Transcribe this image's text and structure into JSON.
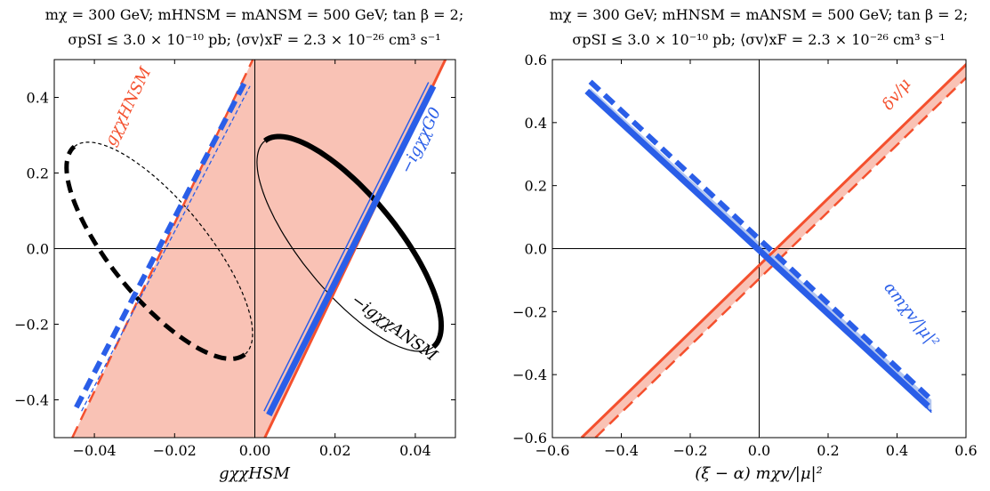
{
  "colors": {
    "red": "#f4502e",
    "red_fill": "#f9c2b5",
    "blue": "#2a5ee8",
    "blue_fill": "#b4c7f0",
    "black": "#000000"
  },
  "chart_data": [
    {
      "type": "line",
      "title_line1": "mχ = 300 GeV; mHNSM = mANSM = 500 GeV; tan β = 2;",
      "title_line2": "σpSI ≤ 3.0 × 10⁻¹⁰ pb; ⟨σv⟩xF = 2.3 × 10⁻²⁶ cm³ s⁻¹",
      "xlabel": "gχχHSM",
      "ylabel": "",
      "xlim": [
        -0.05,
        0.05
      ],
      "ylim": [
        -0.5,
        0.5
      ],
      "xticks": [
        -0.04,
        -0.02,
        0.0,
        0.02,
        0.04
      ],
      "xtick_labels": [
        "−0.04",
        "−0.02",
        "0.00",
        "0.02",
        "0.04"
      ],
      "yticks": [
        -0.4,
        -0.2,
        0.0,
        0.2,
        0.4
      ],
      "ytick_labels": [
        "−0.4",
        "−0.2",
        "0.0",
        "0.2",
        "0.4"
      ],
      "grid": false,
      "zero_lines": true,
      "band": {
        "color_key": "red",
        "left_edge": [
          [
            -0.0455,
            -0.5
          ],
          [
            -0.0005,
            0.5
          ]
        ],
        "right_edge": [
          [
            0.0025,
            -0.5
          ],
          [
            0.0475,
            0.5
          ]
        ]
      },
      "segments": [
        {
          "color_key": "red",
          "style": "dashed",
          "width": 2.5,
          "points": [
            [
              -0.0455,
              -0.5
            ],
            [
              -0.0005,
              0.5
            ]
          ]
        },
        {
          "color_key": "red",
          "style": "solid",
          "width": 3,
          "points": [
            [
              0.0025,
              -0.5
            ],
            [
              0.0475,
              0.5
            ]
          ]
        },
        {
          "color_key": "blue",
          "style": "dashed",
          "width": 6,
          "points": [
            [
              -0.0445,
              -0.42
            ],
            [
              -0.0025,
              0.44
            ]
          ]
        },
        {
          "color_key": "blue",
          "style": "dashed",
          "width": 1.3,
          "points": [
            [
              -0.0445,
              -0.42
            ],
            [
              -0.0025,
              0.44
            ]
          ],
          "offset": [
            0.0013,
            -0.01
          ]
        },
        {
          "color_key": "blue",
          "style": "solid",
          "width": 7,
          "points": [
            [
              0.0035,
              -0.44
            ],
            [
              0.0445,
              0.43
            ]
          ]
        },
        {
          "color_key": "blue",
          "style": "solid",
          "width": 1.5,
          "points": [
            [
              0.0035,
              -0.44
            ],
            [
              0.0445,
              0.43
            ]
          ],
          "offset": [
            -0.0012,
            0.01
          ]
        }
      ],
      "ellipses": [
        {
          "color_key": "black",
          "style": "dashed",
          "width": 1.2,
          "half": "upper",
          "p1": [
            -0.045,
            0.27
          ],
          "p2": [
            -0.0025,
            -0.28
          ],
          "minor": 0.012
        },
        {
          "color_key": "black",
          "style": "dashed",
          "width": 5,
          "half": "lower",
          "p1": [
            -0.045,
            0.27
          ],
          "p2": [
            -0.0025,
            -0.28
          ],
          "minor": 0.012
        },
        {
          "color_key": "black",
          "style": "solid",
          "width": 1.2,
          "half": "lower",
          "p1": [
            0.0025,
            0.285
          ],
          "p2": [
            0.0445,
            -0.26
          ],
          "minor": 0.012
        },
        {
          "color_key": "black",
          "style": "solid",
          "width": 6,
          "half": "upper",
          "p1": [
            0.0025,
            0.285
          ],
          "p2": [
            0.0445,
            -0.26
          ],
          "minor": 0.012
        }
      ],
      "annotations": [
        {
          "text": "gχχHNSM",
          "color_key": "red",
          "at": [
            -0.0305,
            0.37
          ],
          "rotate": -64
        },
        {
          "text": "−igχχG0",
          "color_key": "blue",
          "at": [
            0.0425,
            0.28
          ],
          "rotate": -64
        },
        {
          "text": "−igχχANSM",
          "color_key": "black",
          "at": [
            0.034,
            -0.22
          ],
          "rotate": 36
        }
      ]
    },
    {
      "type": "line",
      "title_line1": "mχ = 300 GeV; mHNSM = mANSM = 500 GeV; tan β = 2;",
      "title_line2": "σpSI ≤ 3.0 × 10⁻¹⁰ pb; ⟨σv⟩xF = 2.3 × 10⁻²⁶ cm³ s⁻¹",
      "xlabel": "(ξ − α) mχv/|μ|²",
      "ylabel": "",
      "xlim": [
        -0.6,
        0.6
      ],
      "ylim": [
        -0.6,
        0.6
      ],
      "xticks": [
        -0.6,
        -0.4,
        -0.2,
        0.0,
        0.2,
        0.4,
        0.6
      ],
      "xtick_labels": [
        "−0.6",
        "−0.4",
        "−0.2",
        "0.0",
        "0.2",
        "0.4",
        "0.6"
      ],
      "yticks": [
        -0.6,
        -0.4,
        -0.2,
        0.0,
        0.2,
        0.4,
        0.6
      ],
      "ytick_labels": [
        "−0.6",
        "−0.4",
        "−0.2",
        "0.0",
        "0.2",
        "0.4",
        "0.6"
      ],
      "grid": false,
      "zero_lines": true,
      "band": {
        "color_key": "red",
        "left_edge": [
          [
            -0.515,
            -0.6
          ],
          [
            0.615,
            0.6
          ]
        ],
        "right_edge": [
          [
            -0.475,
            -0.6
          ],
          [
            0.655,
            0.6
          ]
        ]
      },
      "blue_band": {
        "color_key": "blue",
        "upper_edge": [
          [
            -0.49,
            0.51
          ],
          [
            0.5,
            -0.48
          ]
        ],
        "lower_edge": [
          [
            -0.49,
            0.49
          ],
          [
            0.5,
            -0.52
          ]
        ]
      },
      "segments": [
        {
          "color_key": "red",
          "style": "solid",
          "width": 3,
          "points": [
            [
              -0.515,
              -0.6
            ],
            [
              0.615,
              0.6
            ]
          ]
        },
        {
          "color_key": "red",
          "style": "dashed",
          "width": 2.5,
          "points": [
            [
              -0.475,
              -0.6
            ],
            [
              0.655,
              0.6
            ]
          ]
        },
        {
          "color_key": "blue",
          "style": "dashed",
          "width": 6,
          "points": [
            [
              -0.49,
              0.53
            ],
            [
              0.5,
              -0.48
            ]
          ]
        },
        {
          "color_key": "blue",
          "style": "dashed",
          "width": 1.3,
          "points": [
            [
              -0.49,
              0.5
            ],
            [
              0.5,
              -0.5
            ]
          ],
          "offset": [
            0.0,
            -0.015
          ]
        },
        {
          "color_key": "blue",
          "style": "solid",
          "width": 7,
          "points": [
            [
              -0.5,
              0.5
            ],
            [
              0.49,
              -0.5
            ]
          ]
        },
        {
          "color_key": "blue",
          "style": "solid",
          "width": 1.5,
          "points": [
            [
              -0.49,
              0.49
            ],
            [
              0.5,
              -0.52
            ]
          ]
        }
      ],
      "ellipses": [],
      "annotations": [
        {
          "text": "δv/μ",
          "color_key": "red",
          "at": [
            0.41,
            0.48
          ],
          "rotate": -52
        },
        {
          "text": "αmχv/|μ|²",
          "color_key": "blue",
          "at": [
            0.43,
            -0.22
          ],
          "rotate": 52
        }
      ]
    }
  ]
}
